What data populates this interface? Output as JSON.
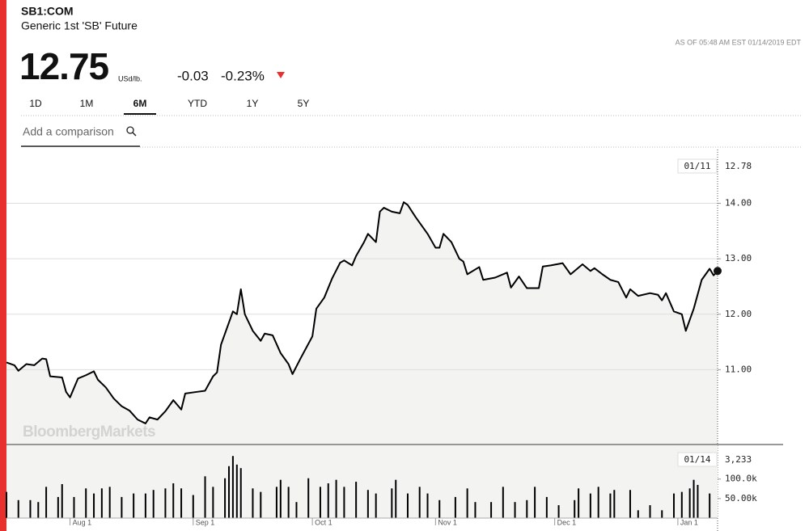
{
  "header": {
    "ticker": "SB1:COM",
    "name": "Generic 1st 'SB' Future",
    "as_of": "AS OF 05:48 AM EST 01/14/2019 EDT",
    "price": "12.75",
    "unit": "USd/lb.",
    "change": "-0.03",
    "change_pct": "-0.23%"
  },
  "tabs": [
    "1D",
    "1M",
    "6M",
    "YTD",
    "1Y",
    "5Y"
  ],
  "active_tab": "6M",
  "comparison_placeholder": "Add a comparison",
  "watermark": "BloombergMarkets",
  "chart_data": [
    {
      "type": "line",
      "color": "#000000",
      "fill": "#f3f4f2",
      "x": [
        "Jul 16",
        "Jul 18",
        "Jul 19",
        "Jul 21",
        "Jul 23",
        "Jul 25",
        "Jul 26",
        "Jul 27",
        "Jul 30",
        "Jul 31",
        "Aug 1",
        "Aug 3",
        "Aug 5",
        "Aug 7",
        "Aug 8",
        "Aug 10",
        "Aug 12",
        "Aug 14",
        "Aug 16",
        "Aug 18",
        "Aug 20",
        "Aug 21",
        "Aug 23",
        "Aug 25",
        "Aug 27",
        "Aug 29",
        "Aug 30",
        "Sep 2",
        "Sep 4",
        "Sep 6",
        "Sep 7",
        "Sep 8",
        "Sep 11",
        "Sep 12",
        "Sep 13",
        "Sep 14",
        "Sep 16",
        "Sep 18",
        "Sep 19",
        "Sep 21",
        "Sep 23",
        "Sep 25",
        "Sep 26",
        "Sep 28",
        "Oct 1",
        "Oct 2",
        "Oct 4",
        "Oct 6",
        "Oct 8",
        "Oct 9",
        "Oct 11",
        "Oct 12",
        "Oct 14",
        "Oct 15",
        "Oct 17",
        "Oct 18",
        "Oct 19",
        "Oct 21",
        "Oct 23",
        "Oct 24",
        "Oct 25",
        "Oct 27",
        "Oct 30",
        "Nov 1",
        "Nov 2",
        "Nov 3",
        "Nov 5",
        "Nov 7",
        "Nov 8",
        "Nov 9",
        "Nov 12",
        "Nov 13",
        "Nov 16",
        "Nov 19",
        "Nov 20",
        "Nov 22",
        "Nov 24",
        "Nov 27",
        "Nov 28",
        "Nov 30",
        "Dec 3",
        "Dec 5",
        "Dec 8",
        "Dec 10",
        "Dec 11",
        "Dec 13",
        "Dec 15",
        "Dec 17",
        "Dec 19",
        "Dec 20",
        "Dec 22",
        "Dec 25",
        "Dec 27",
        "Dec 28",
        "Dec 29",
        "Dec 31",
        "Jan 2",
        "Jan 3",
        "Jan 5",
        "Jan 7",
        "Jan 9",
        "Jan 10",
        "Jan 11"
      ],
      "values": [
        11.13,
        11.08,
        10.98,
        11.1,
        11.08,
        11.2,
        11.19,
        10.88,
        10.86,
        10.6,
        10.5,
        10.84,
        10.9,
        10.97,
        10.82,
        10.68,
        10.48,
        10.34,
        10.26,
        10.1,
        10.03,
        10.14,
        10.1,
        10.25,
        10.45,
        10.28,
        10.57,
        10.6,
        10.62,
        10.88,
        10.95,
        11.45,
        12.05,
        12.0,
        12.45,
        12.0,
        11.7,
        11.52,
        11.65,
        11.62,
        11.3,
        11.1,
        10.92,
        11.2,
        11.6,
        12.1,
        12.3,
        12.65,
        12.93,
        12.97,
        12.88,
        13.05,
        13.3,
        13.45,
        13.3,
        13.85,
        13.92,
        13.85,
        13.82,
        14.02,
        13.97,
        13.75,
        13.45,
        13.2,
        13.2,
        13.45,
        13.3,
        13.0,
        12.95,
        12.72,
        12.85,
        12.62,
        12.66,
        12.75,
        12.48,
        12.68,
        12.47,
        12.47,
        12.86,
        12.88,
        12.92,
        12.72,
        12.9,
        12.78,
        12.83,
        12.72,
        12.62,
        12.58,
        12.3,
        12.45,
        12.33,
        12.38,
        12.35,
        12.25,
        12.38,
        12.05,
        12.0,
        11.7,
        12.1,
        12.62,
        12.82,
        12.7,
        12.78
      ],
      "xlim": [
        "Jul 16",
        "Jan 11"
      ],
      "ylim": [
        9.65,
        14.97
      ],
      "yticks": [
        {
          "value": 11,
          "label": "11.00"
        },
        {
          "value": 12,
          "label": "12.00"
        },
        {
          "value": 13,
          "label": "13.00"
        },
        {
          "value": 14,
          "label": "14.00"
        }
      ],
      "grid": true,
      "cursor": {
        "date_label": "01/11",
        "value": 12.78
      }
    },
    {
      "type": "bar",
      "color": "#000000",
      "x": [
        "Jul 16",
        "Jul 19",
        "Jul 22",
        "Jul 24",
        "Jul 26",
        "Jul 29",
        "Jul 30",
        "Aug 2",
        "Aug 5",
        "Aug 7",
        "Aug 9",
        "Aug 11",
        "Aug 14",
        "Aug 17",
        "Aug 20",
        "Aug 22",
        "Aug 25",
        "Aug 27",
        "Aug 29",
        "Sep 1",
        "Sep 4",
        "Sep 6",
        "Sep 9",
        "Sep 10",
        "Sep 11",
        "Sep 12",
        "Sep 13",
        "Sep 16",
        "Sep 18",
        "Sep 22",
        "Sep 23",
        "Sep 25",
        "Sep 27",
        "Sep 30",
        "Oct 3",
        "Oct 5",
        "Oct 7",
        "Oct 9",
        "Oct 12",
        "Oct 15",
        "Oct 17",
        "Oct 21",
        "Oct 22",
        "Oct 25",
        "Oct 28",
        "Oct 30",
        "Nov 2",
        "Nov 6",
        "Nov 9",
        "Nov 11",
        "Nov 15",
        "Nov 18",
        "Nov 21",
        "Nov 24",
        "Nov 26",
        "Nov 29",
        "Dec 2",
        "Dec 6",
        "Dec 7",
        "Dec 10",
        "Dec 12",
        "Dec 15",
        "Dec 16",
        "Dec 20",
        "Dec 22",
        "Dec 25",
        "Dec 28",
        "Dec 31",
        "Jan 2",
        "Jan 4",
        "Jan 5",
        "Jan 6",
        "Jan 9"
      ],
      "values": [
        67000,
        46000,
        46000,
        41000,
        80000,
        54000,
        87000,
        54000,
        76000,
        63000,
        76000,
        80000,
        54000,
        63000,
        63000,
        72000,
        76000,
        89000,
        76000,
        59000,
        107000,
        80000,
        102000,
        133000,
        159000,
        137000,
        128000,
        76000,
        67000,
        80000,
        98000,
        80000,
        41000,
        102000,
        80000,
        89000,
        98000,
        80000,
        93000,
        72000,
        63000,
        76000,
        98000,
        63000,
        80000,
        63000,
        46000,
        54000,
        76000,
        41000,
        41000,
        80000,
        41000,
        46000,
        80000,
        54000,
        33000,
        46000,
        76000,
        63000,
        80000,
        63000,
        72000,
        72000,
        20000,
        33000,
        20000,
        63000,
        67000,
        76000,
        98000,
        85000,
        63000
      ],
      "xlim": [
        "Jul 16",
        "Jan 11"
      ],
      "ylim": [
        0,
        176000
      ],
      "yticks": [
        {
          "value": 50000,
          "label": "50.00k"
        },
        {
          "value": 100000,
          "label": "100.0k"
        }
      ],
      "xticks": [
        "Aug 1",
        "Sep 1",
        "Oct 1",
        "Nov 1",
        "Dec 1",
        "Jan 1"
      ],
      "cursor": {
        "date_label": "01/14",
        "value": 3233,
        "value_label": "3,233"
      }
    }
  ]
}
